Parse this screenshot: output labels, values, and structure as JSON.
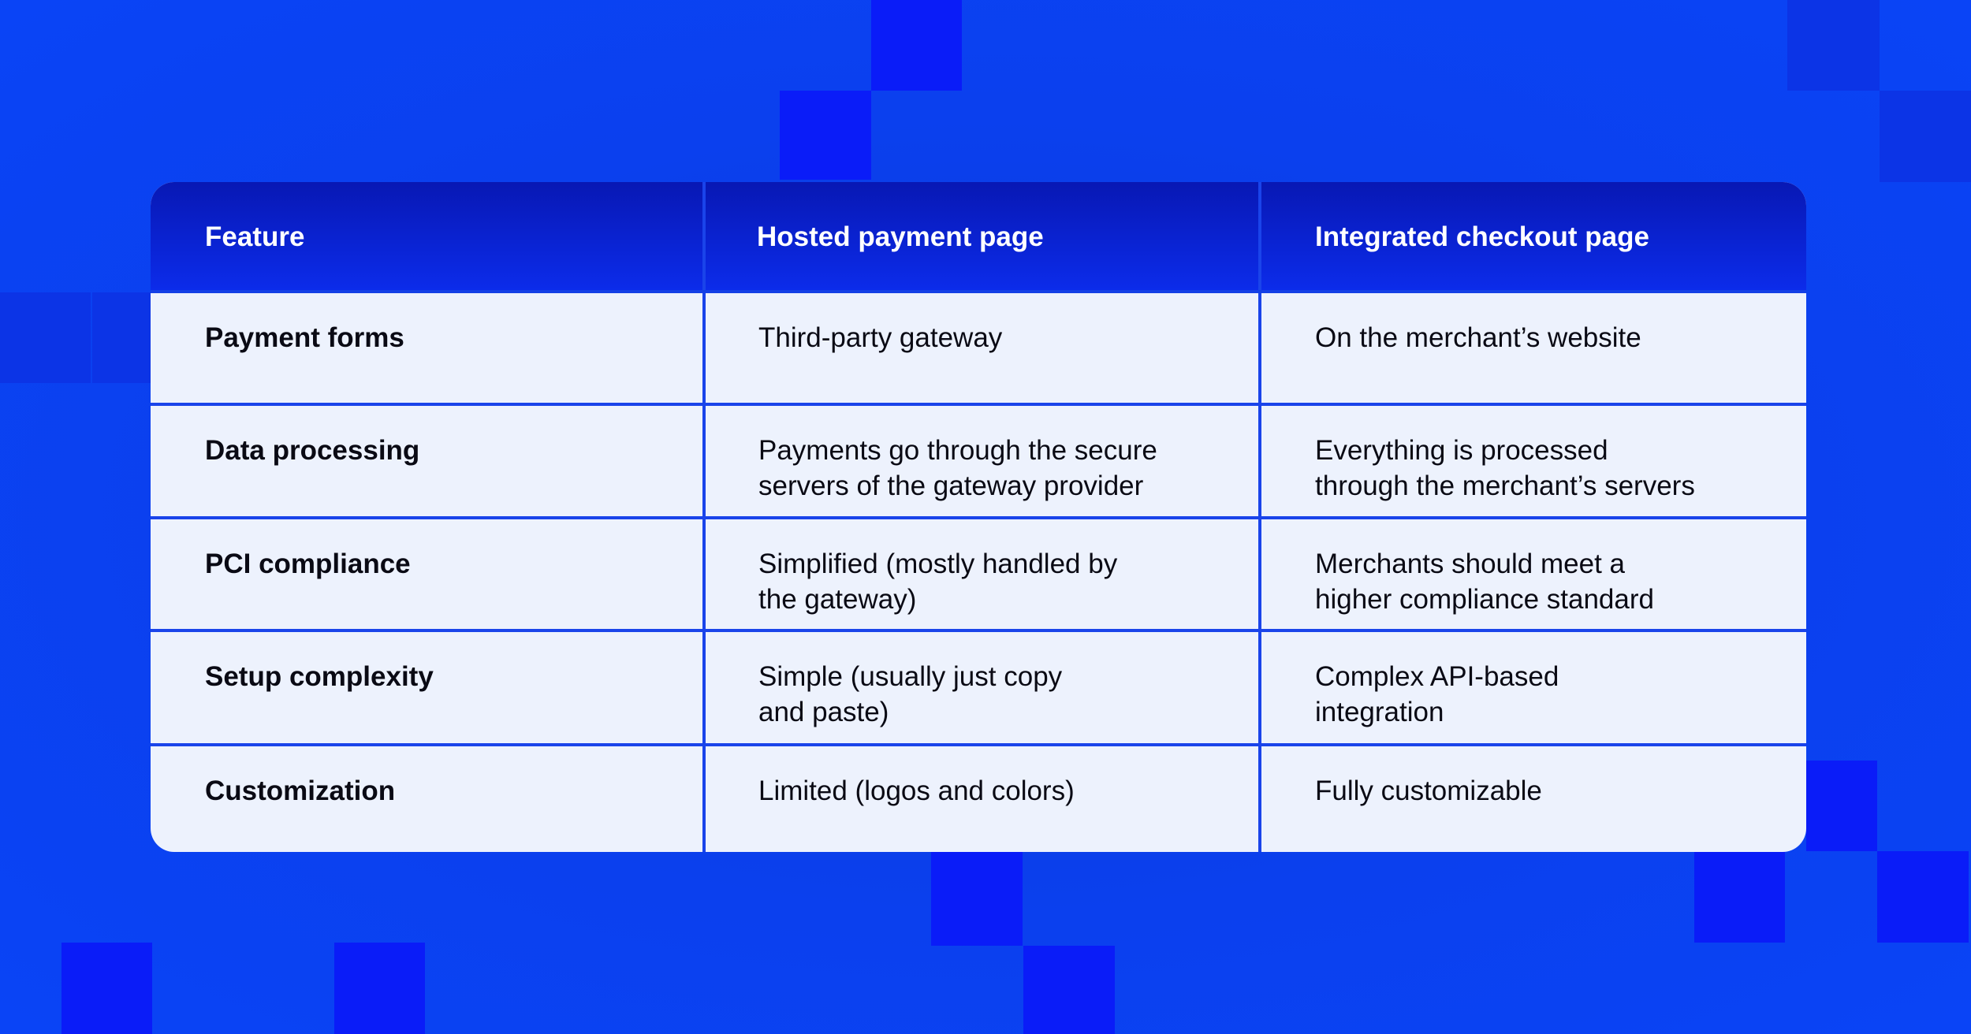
{
  "table": {
    "header": [
      "Feature",
      "Hosted payment page",
      "Integrated checkout page"
    ],
    "rows": [
      {
        "feature": "Payment forms",
        "hosted": [
          "Third-party gateway"
        ],
        "integrated": [
          "On the merchant’s website"
        ]
      },
      {
        "feature": "Data processing",
        "hosted": [
          "Payments go through the secure",
          "servers of the gateway provider"
        ],
        "integrated": [
          "Everything is processed",
          "through the merchant’s servers"
        ]
      },
      {
        "feature": "PCI compliance",
        "hosted": [
          "Simplified (mostly handled by",
          "the gateway)"
        ],
        "integrated": [
          "Merchants should meet a",
          "higher compliance standard"
        ]
      },
      {
        "feature": "Setup complexity",
        "hosted": [
          "Simple (usually just copy",
          "and paste)"
        ],
        "integrated": [
          "Complex API-based",
          "integration"
        ]
      },
      {
        "feature": "Customization",
        "hosted": [
          "Limited (logos and colors)"
        ],
        "integrated": [
          "Fully customizable"
        ]
      }
    ]
  }
}
